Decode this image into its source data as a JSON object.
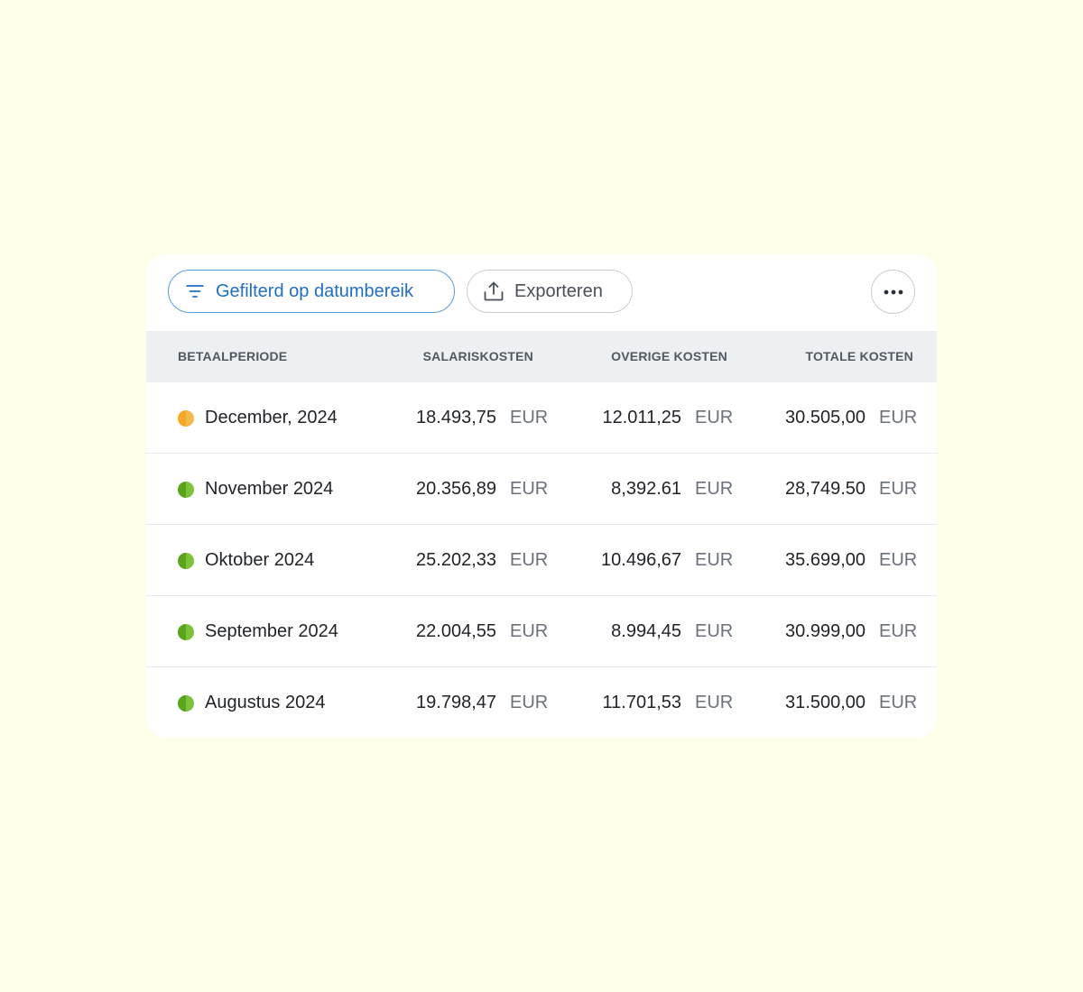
{
  "toolbar": {
    "filter_label": "Gefilterd op datumbereik",
    "filter_icon": "filter-icon",
    "export_label": "Exporteren",
    "export_icon": "upload-icon",
    "more_icon": "more-horizontal-icon"
  },
  "table": {
    "headers": {
      "period": "BETAALPERIODE",
      "salary": "SALARISKOSTEN",
      "other": "OVERIGE KOSTEN",
      "total": "TOTALE KOSTEN"
    },
    "rows": [
      {
        "period": "December, 2024",
        "status": "in-progress",
        "status_color_left": "#f6a623",
        "status_color_right": "#f2b84b",
        "salary": "18.493,75",
        "salary_currency": "EUR",
        "other": "12.011,25",
        "other_currency": "EUR",
        "total": "30.505,00",
        "total_currency": "EUR"
      },
      {
        "period": "November 2024",
        "status": "complete",
        "status_color_left": "#5aa41c",
        "status_color_right": "#7cc23a",
        "salary": "20.356,89",
        "salary_currency": "EUR",
        "other": "8,392.61",
        "other_currency": "EUR",
        "total": "28,749.50",
        "total_currency": "EUR"
      },
      {
        "period": "Oktober 2024",
        "status": "complete",
        "status_color_left": "#5aa41c",
        "status_color_right": "#7cc23a",
        "salary": "25.202,33",
        "salary_currency": "EUR",
        "other": "10.496,67",
        "other_currency": "EUR",
        "total": "35.699,00",
        "total_currency": "EUR"
      },
      {
        "period": "September 2024",
        "status": "complete",
        "status_color_left": "#5aa41c",
        "status_color_right": "#7cc23a",
        "salary": "22.004,55",
        "salary_currency": "EUR",
        "other": "8.994,45",
        "other_currency": "EUR",
        "total": "30.999,00",
        "total_currency": "EUR"
      },
      {
        "period": "Augustus 2024",
        "status": "complete",
        "status_color_left": "#5aa41c",
        "status_color_right": "#7cc23a",
        "salary": "19.798,47",
        "salary_currency": "EUR",
        "other": "11.701,53",
        "other_currency": "EUR",
        "total": "31.500,00",
        "total_currency": "EUR"
      }
    ]
  },
  "colors": {
    "background": "#fefee9",
    "accent": "#1f6fc4",
    "header_bg": "#edf0f3"
  }
}
